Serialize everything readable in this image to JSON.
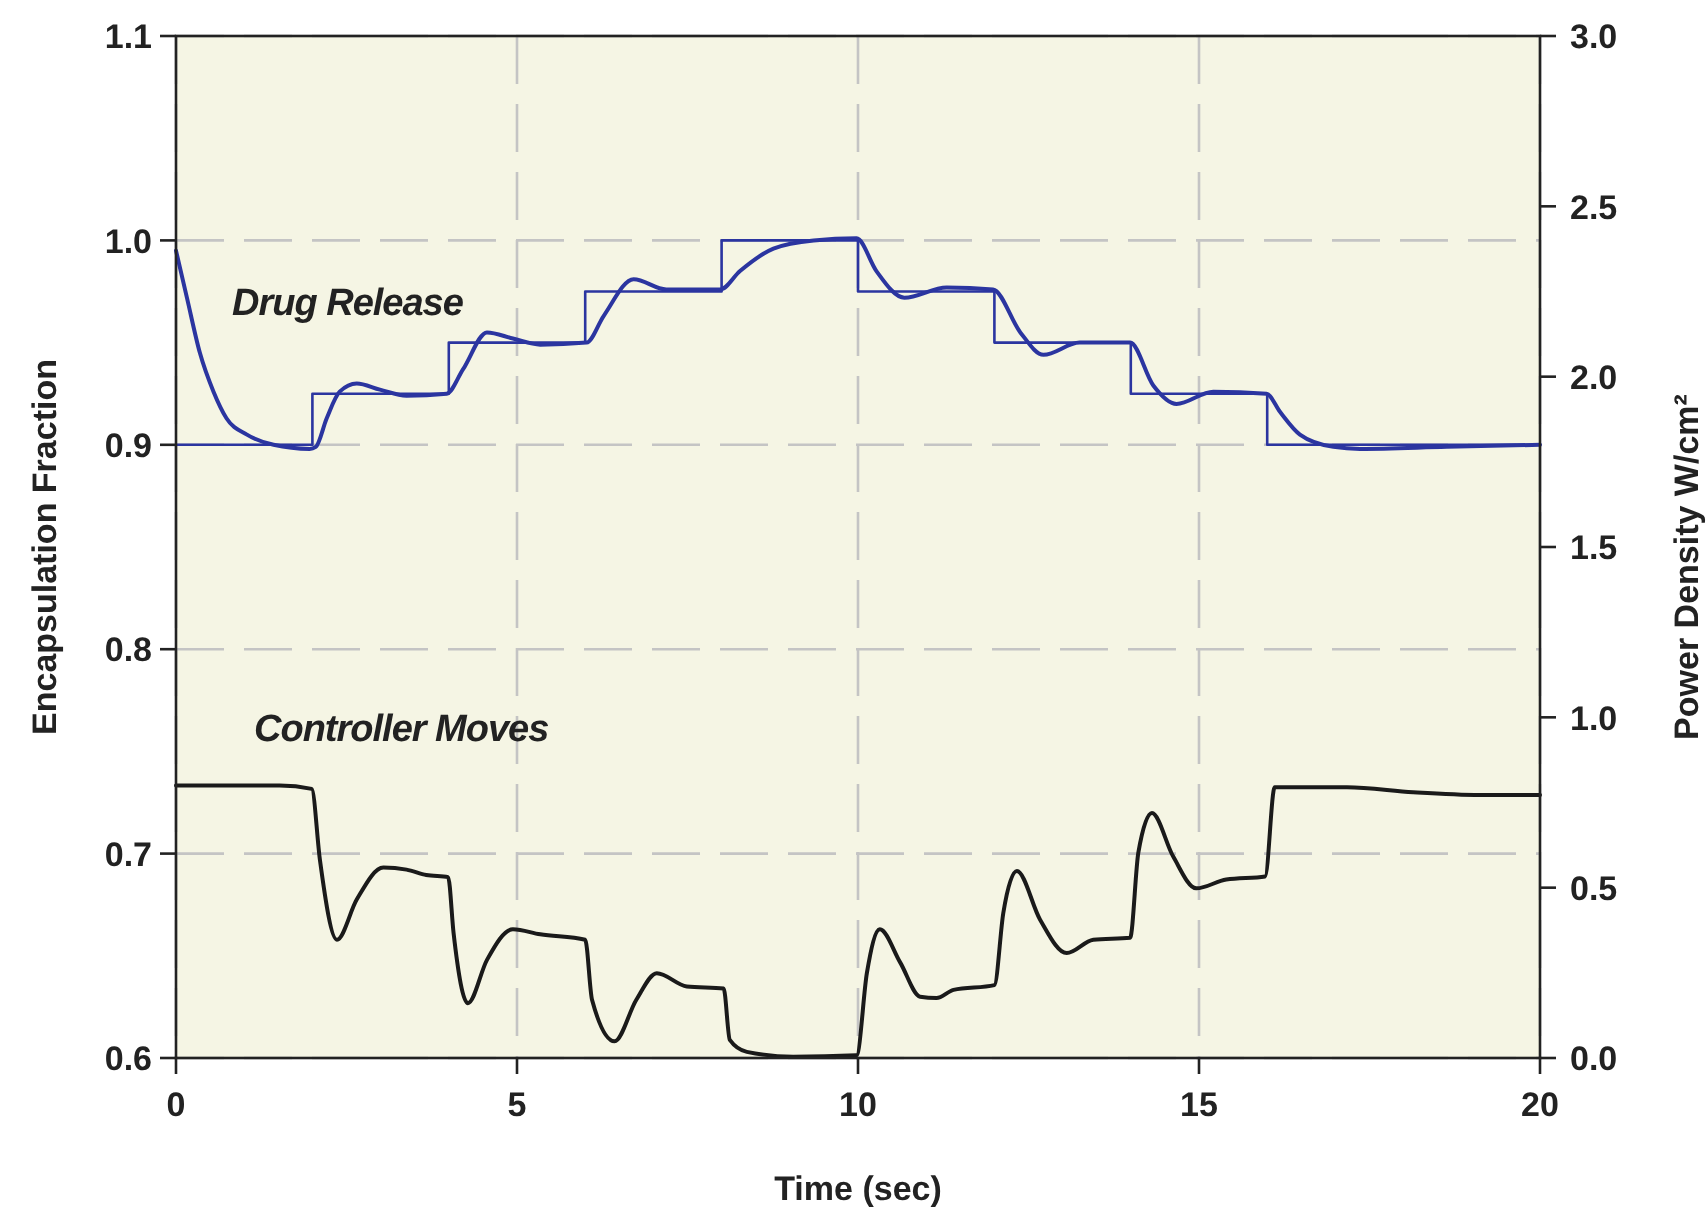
{
  "chart_data": {
    "type": "line",
    "xlabel": "Time (sec)",
    "ylabel": "Encapsulation Fraction",
    "y2label": "Power Density W/cm²",
    "xlim": [
      0,
      20
    ],
    "xticks": [
      0,
      5,
      10,
      15,
      20
    ],
    "ylim": [
      0.6,
      1.1
    ],
    "yticks": [
      0.6,
      0.7,
      0.8,
      0.9,
      {
        "value": 1,
        "label": "1.0"
      },
      1.1
    ],
    "y2lim": [
      0,
      3
    ],
    "y2ticks": [
      {
        "value": 0,
        "label": "0.0"
      },
      0.5,
      {
        "value": 1,
        "label": "1.0"
      },
      1.5,
      {
        "value": 2,
        "label": "2.0"
      },
      2.5,
      {
        "value": 3,
        "label": "3.0"
      }
    ],
    "grid": true,
    "series": [
      {
        "type": "step",
        "color": "#2b35a0",
        "x": [
          0,
          2,
          4,
          6,
          8,
          10,
          12,
          14,
          16,
          20
        ],
        "values": [
          0.9,
          0.925,
          0.95,
          0.975,
          1,
          0.975,
          0.95,
          0.925,
          0.9,
          0.9
        ]
      },
      {
        "name": "Drug Release",
        "color": "#2b35a0",
        "x": [
          0,
          0.16,
          0.35,
          0.55,
          0.74,
          1.04,
          1.43,
          1.96,
          2.05,
          2.21,
          2.4,
          2.65,
          2.99,
          3.38,
          3.97,
          4.21,
          4.56,
          4.94,
          5.34,
          6.02,
          6.27,
          6.71,
          7.19,
          7.98,
          8.27,
          8.76,
          9.35,
          9.98,
          10.27,
          10.68,
          11.3,
          11.98,
          12.38,
          12.72,
          13.25,
          13.99,
          14.33,
          14.67,
          15.21,
          15.99,
          16.19,
          16.48,
          16.97,
          17.36,
          18.63,
          20
        ],
        "values": [
          0.995,
          0.972,
          0.945,
          0.926,
          0.913,
          0.905,
          0.9,
          0.898,
          0.899,
          0.913,
          0.926,
          0.93,
          0.927,
          0.924,
          0.925,
          0.937,
          0.955,
          0.952,
          0.949,
          0.95,
          0.963,
          0.981,
          0.976,
          0.976,
          0.985,
          0.996,
          1,
          1.001,
          0.985,
          0.972,
          0.977,
          0.976,
          0.955,
          0.944,
          0.95,
          0.95,
          0.929,
          0.92,
          0.926,
          0.925,
          0.916,
          0.905,
          0.899,
          0.898,
          0.899,
          0.9
        ]
      },
      {
        "name": "Controller Moves",
        "axis": "y2",
        "color": "#1a1a1a",
        "x": [
          0,
          1.52,
          1.99,
          2.11,
          2.36,
          2.65,
          3.04,
          3.38,
          3.67,
          3.99,
          4.07,
          4.28,
          4.56,
          4.94,
          5.34,
          6,
          6.1,
          6.43,
          6.75,
          7.05,
          7.49,
          8.03,
          8.12,
          8.37,
          9.05,
          9.98,
          10.13,
          10.32,
          10.62,
          10.91,
          11.15,
          11.4,
          12,
          12.13,
          12.33,
          12.67,
          13.06,
          13.45,
          13.99,
          14.11,
          14.31,
          14.62,
          14.96,
          15.4,
          15.97,
          16.11,
          17.17,
          18.14,
          19.12,
          20
        ],
        "values": [
          0.8,
          0.8,
          0.79,
          0.582,
          0.347,
          0.465,
          0.559,
          0.553,
          0.537,
          0.531,
          0.367,
          0.161,
          0.288,
          0.378,
          0.363,
          0.347,
          0.171,
          0.049,
          0.171,
          0.249,
          0.21,
          0.204,
          0.053,
          0.018,
          0.004,
          0.008,
          0.249,
          0.378,
          0.28,
          0.18,
          0.176,
          0.2,
          0.214,
          0.425,
          0.549,
          0.406,
          0.308,
          0.347,
          0.353,
          0.602,
          0.719,
          0.592,
          0.498,
          0.524,
          0.533,
          0.795,
          0.795,
          0.78,
          0.772,
          0.772
        ]
      }
    ]
  }
}
